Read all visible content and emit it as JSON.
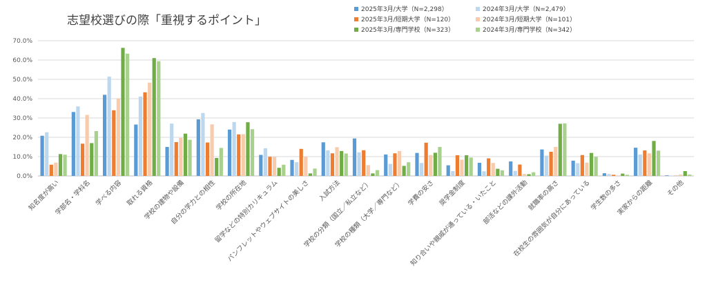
{
  "chart_data": {
    "type": "bar",
    "title": "志望校選びの際「重視するポイント」",
    "ylim": [
      0,
      70
    ],
    "ytick_step": 10,
    "ytick_labels": [
      "0.0%",
      "10.0%",
      "20.0%",
      "30.0%",
      "40.0%",
      "50.0%",
      "60.0%",
      "70.0%"
    ],
    "grid": true,
    "legend_position": "top-right",
    "categories": [
      "知名度が高い",
      "学部名・学科名",
      "学べる内容",
      "取れる資格",
      "学校の建物や設備",
      "自分の学力との相性",
      "学校の所在地",
      "留学などの特別カリキュラム",
      "パンフレットやウェブサイトの美しさ",
      "入試方法",
      "学校の分類（国立／私立など）",
      "学校の種類（大学／専門など）",
      "学費の安さ",
      "奨学金制度",
      "知り合いや親戚が通っている・いたこと",
      "部活などの課外活動",
      "就職率の高さ",
      "在校生の雰囲気が自分にあっている",
      "学生数の多さ",
      "実家からの距離",
      "その他"
    ],
    "series": [
      {
        "name": "2025年3月/大学（N=2,298）",
        "color": "#5b9bd5",
        "values": [
          20.8,
          33.1,
          42.0,
          26.6,
          15.0,
          29.3,
          24.0,
          10.9,
          8.3,
          17.4,
          19.4,
          11.1,
          11.9,
          5.5,
          6.8,
          7.5,
          13.7,
          7.9,
          1.4,
          14.6,
          0.3
        ]
      },
      {
        "name": "2024年3月/大学（N=2,479）",
        "color": "#bdd7ee",
        "values": [
          22.6,
          36.0,
          51.4,
          41.1,
          27.1,
          32.6,
          27.9,
          14.3,
          7.1,
          13.2,
          12.2,
          6.2,
          6.7,
          2.5,
          2.4,
          2.6,
          10.5,
          6.6,
          1.0,
          11.1,
          0.2
        ]
      },
      {
        "name": "2025年3月/短期大学（N=120）",
        "color": "#ed7d31",
        "values": [
          5.8,
          16.7,
          34.0,
          43.3,
          17.5,
          17.3,
          21.5,
          9.9,
          14.0,
          11.7,
          13.3,
          11.7,
          17.2,
          10.7,
          9.1,
          5.9,
          12.5,
          10.8,
          0.6,
          13.2,
          0.1
        ]
      },
      {
        "name": "2024年3月/短期大学（N=101）",
        "color": "#f8cbad",
        "values": [
          6.9,
          31.6,
          40.2,
          48.3,
          19.7,
          26.7,
          21.6,
          9.8,
          9.9,
          14.9,
          5.6,
          12.9,
          10.8,
          8.4,
          6.7,
          1.0,
          15.0,
          6.9,
          0.3,
          11.7,
          0.7
        ]
      },
      {
        "name": "2025年3月/専門学校（N=323）",
        "color": "#70ad47",
        "values": [
          11.3,
          17.0,
          66.3,
          61.0,
          21.9,
          9.3,
          27.8,
          4.2,
          1.3,
          12.9,
          1.3,
          5.2,
          12.0,
          10.7,
          3.7,
          0.9,
          27.0,
          11.9,
          1.2,
          18.1,
          2.5
        ]
      },
      {
        "name": "2024年3月/専門学校（N=342）",
        "color": "#a9d18e",
        "values": [
          11.0,
          23.2,
          63.3,
          59.4,
          18.7,
          14.5,
          24.2,
          5.8,
          3.8,
          11.6,
          3.0,
          7.1,
          15.0,
          9.5,
          2.9,
          1.9,
          27.2,
          9.9,
          0.6,
          13.1,
          0.7
        ]
      }
    ]
  }
}
